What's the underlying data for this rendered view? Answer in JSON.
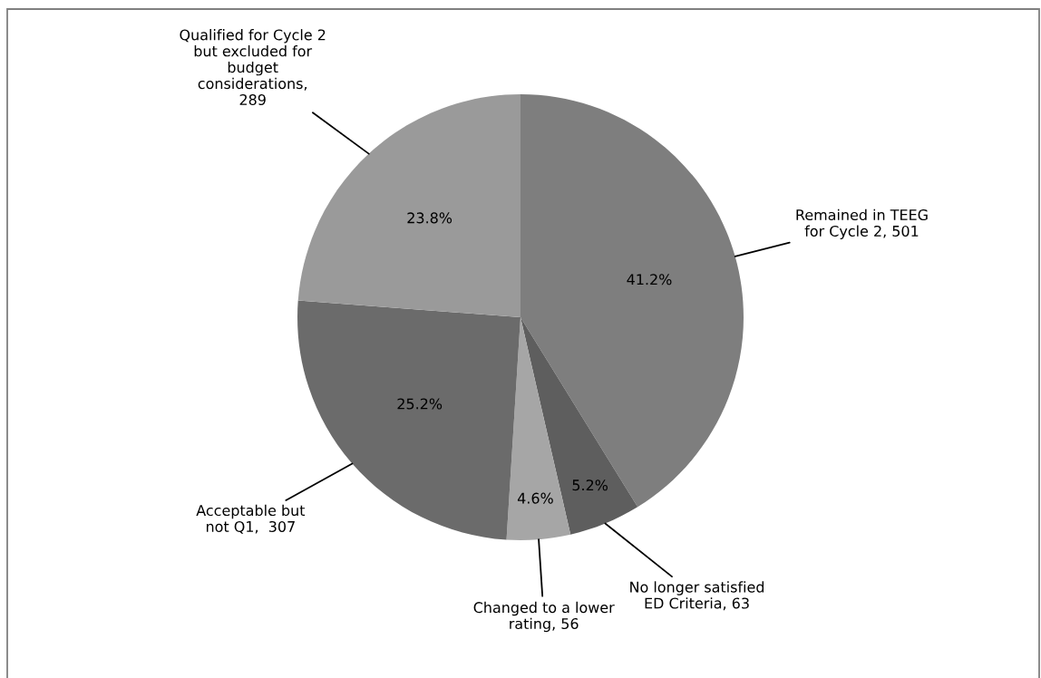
{
  "chart_data": {
    "type": "pie",
    "categories": [
      "Remained in TEEG\nfor Cycle 2, 501",
      "No longer satisfied\nED Criteria, 63",
      "Changed to a lower\nrating, 56",
      "Acceptable but\nnot Q1,  307",
      "Qualified for Cycle 2\nbut excluded for\nbudget\nconsiderations,\n289"
    ],
    "values": [
      41.2,
      5.2,
      4.6,
      25.2,
      23.8
    ],
    "colors": [
      "#7e7e7e",
      "#5e5e5e",
      "#a6a6a6",
      "#6b6b6b",
      "#9a9a9a"
    ],
    "value_labels": [
      "41.2%",
      "5.2%",
      "4.6%",
      "25.2%",
      "23.8%"
    ]
  }
}
